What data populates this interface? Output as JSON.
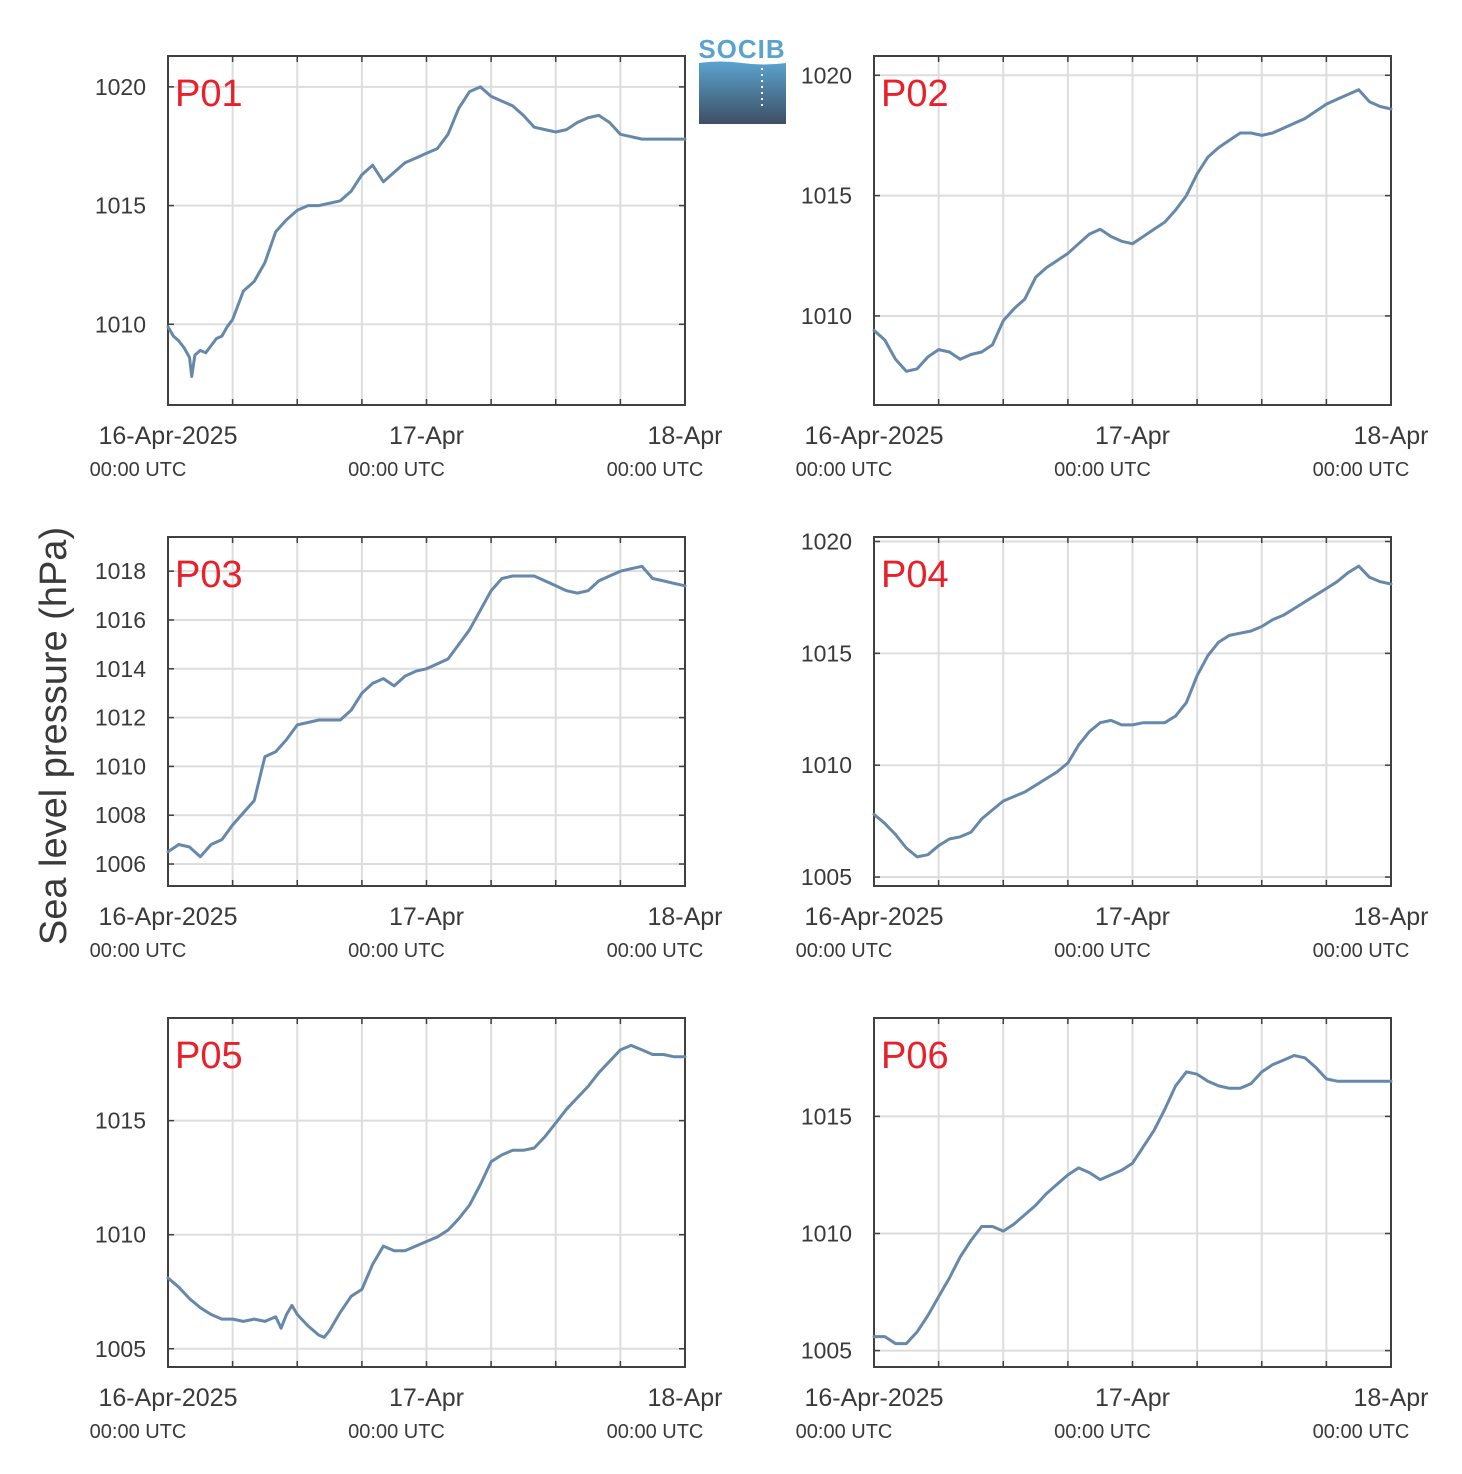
{
  "figure": {
    "ylabel": "Sea level pressure (hPa)",
    "logo_text": "SOCIB",
    "colors": {
      "line": "#6688aa",
      "panel_label": "#e8202a",
      "grid": "#dddddd",
      "axis": "#404040",
      "text": "#3a3a3a",
      "logo_top": "#5ba3cf",
      "logo_bottom": "#3d4f64"
    }
  },
  "chart_data": [
    {
      "type": "line",
      "title": "P01",
      "xlim": [
        0,
        48
      ],
      "x_ticks": [
        {
          "x": 0,
          "label": "16-Apr-2025",
          "sublabel": "00:00 UTC"
        },
        {
          "x": 24,
          "label": "17-Apr",
          "sublabel": "00:00 UTC"
        },
        {
          "x": 48,
          "label": "18-Apr",
          "sublabel": "00:00 UTC"
        }
      ],
      "x_grid": [
        0,
        6,
        12,
        18,
        24,
        30,
        36,
        42,
        48
      ],
      "ylim": [
        1006.6,
        1021.3
      ],
      "yticks": [
        1010,
        1015,
        1020
      ],
      "series": [
        {
          "x": [
            0,
            0.5,
            1,
            1.5,
            2,
            2.2,
            2.5,
            3,
            3.5,
            4,
            4.5,
            5,
            5.5,
            6,
            7,
            8,
            9,
            10,
            11,
            12,
            13,
            14,
            15,
            16,
            17,
            18,
            19,
            20,
            21,
            22,
            23,
            24,
            25,
            26,
            27,
            28,
            29,
            30,
            31,
            32,
            33,
            34,
            35,
            36,
            37,
            38,
            39,
            40,
            41,
            42,
            43,
            44,
            45,
            46,
            47,
            48
          ],
          "y": [
            1009.9,
            1009.5,
            1009.3,
            1009.0,
            1008.6,
            1007.8,
            1008.7,
            1008.9,
            1008.8,
            1009.1,
            1009.4,
            1009.5,
            1009.9,
            1010.2,
            1011.4,
            1011.8,
            1012.6,
            1013.9,
            1014.4,
            1014.8,
            1015.0,
            1015.0,
            1015.1,
            1015.2,
            1015.6,
            1016.3,
            1016.7,
            1016.0,
            1016.4,
            1016.8,
            1017.0,
            1017.2,
            1017.4,
            1018.0,
            1019.1,
            1019.8,
            1020.0,
            1019.6,
            1019.4,
            1019.2,
            1018.8,
            1018.3,
            1018.2,
            1018.1,
            1018.2,
            1018.5,
            1018.7,
            1018.8,
            1018.5,
            1018.0,
            1017.9,
            1017.8,
            1017.8,
            1017.8,
            1017.8,
            1017.8
          ]
        }
      ]
    },
    {
      "type": "line",
      "title": "P02",
      "xlim": [
        0,
        48
      ],
      "x_ticks": [
        {
          "x": 0,
          "label": "16-Apr-2025",
          "sublabel": "00:00 UTC"
        },
        {
          "x": 24,
          "label": "17-Apr",
          "sublabel": "00:00 UTC"
        },
        {
          "x": 48,
          "label": "18-Apr",
          "sublabel": "00:00 UTC"
        }
      ],
      "x_grid": [
        0,
        6,
        12,
        18,
        24,
        30,
        36,
        42,
        48
      ],
      "ylim": [
        1006.3,
        1020.8
      ],
      "yticks": [
        1010,
        1015,
        1020
      ],
      "series": [
        {
          "x": [
            0,
            1,
            2,
            3,
            4,
            5,
            6,
            7,
            8,
            9,
            10,
            11,
            12,
            13,
            14,
            15,
            16,
            17,
            18,
            19,
            20,
            21,
            22,
            23,
            24,
            25,
            26,
            27,
            28,
            29,
            30,
            31,
            32,
            33,
            34,
            35,
            36,
            37,
            38,
            39,
            40,
            41,
            42,
            43,
            44,
            45,
            46,
            47,
            48
          ],
          "y": [
            1009.4,
            1009.0,
            1008.2,
            1007.7,
            1007.8,
            1008.3,
            1008.6,
            1008.5,
            1008.2,
            1008.4,
            1008.5,
            1008.8,
            1009.8,
            1010.3,
            1010.7,
            1011.6,
            1012.0,
            1012.3,
            1012.6,
            1013.0,
            1013.4,
            1013.6,
            1013.3,
            1013.1,
            1013.0,
            1013.3,
            1013.6,
            1013.9,
            1014.4,
            1015.0,
            1015.9,
            1016.6,
            1017.0,
            1017.3,
            1017.6,
            1017.6,
            1017.5,
            1017.6,
            1017.8,
            1018.0,
            1018.2,
            1018.5,
            1018.8,
            1019.0,
            1019.2,
            1019.4,
            1018.9,
            1018.7,
            1018.6
          ]
        }
      ]
    },
    {
      "type": "line",
      "title": "P03",
      "xlim": [
        0,
        48
      ],
      "x_ticks": [
        {
          "x": 0,
          "label": "16-Apr-2025",
          "sublabel": "00:00 UTC"
        },
        {
          "x": 24,
          "label": "17-Apr",
          "sublabel": "00:00 UTC"
        },
        {
          "x": 48,
          "label": "18-Apr",
          "sublabel": "00:00 UTC"
        }
      ],
      "x_grid": [
        0,
        6,
        12,
        18,
        24,
        30,
        36,
        42,
        48
      ],
      "ylim": [
        1005.1,
        1019.4
      ],
      "yticks": [
        1006,
        1008,
        1010,
        1012,
        1014,
        1016,
        1018
      ],
      "series": [
        {
          "x": [
            0,
            1,
            2,
            3,
            4,
            5,
            6,
            7,
            8,
            9,
            10,
            11,
            12,
            13,
            14,
            15,
            16,
            17,
            18,
            19,
            20,
            21,
            22,
            23,
            24,
            25,
            26,
            27,
            28,
            29,
            30,
            31,
            32,
            33,
            34,
            35,
            36,
            37,
            38,
            39,
            40,
            41,
            42,
            43,
            44,
            45,
            46,
            47,
            48
          ],
          "y": [
            1006.5,
            1006.8,
            1006.7,
            1006.3,
            1006.8,
            1007.0,
            1007.6,
            1008.1,
            1008.6,
            1010.4,
            1010.6,
            1011.1,
            1011.7,
            1011.8,
            1011.9,
            1011.9,
            1011.9,
            1012.3,
            1013.0,
            1013.4,
            1013.6,
            1013.3,
            1013.7,
            1013.9,
            1014.0,
            1014.2,
            1014.4,
            1015.0,
            1015.6,
            1016.4,
            1017.2,
            1017.7,
            1017.8,
            1017.8,
            1017.8,
            1017.6,
            1017.4,
            1017.2,
            1017.1,
            1017.2,
            1017.6,
            1017.8,
            1018.0,
            1018.1,
            1018.2,
            1017.7,
            1017.6,
            1017.5,
            1017.4
          ]
        }
      ]
    },
    {
      "type": "line",
      "title": "P04",
      "xlim": [
        0,
        48
      ],
      "x_ticks": [
        {
          "x": 0,
          "label": "16-Apr-2025",
          "sublabel": "00:00 UTC"
        },
        {
          "x": 24,
          "label": "17-Apr",
          "sublabel": "00:00 UTC"
        },
        {
          "x": 48,
          "label": "18-Apr",
          "sublabel": "00:00 UTC"
        }
      ],
      "x_grid": [
        0,
        6,
        12,
        18,
        24,
        30,
        36,
        42,
        48
      ],
      "ylim": [
        1004.6,
        1020.2
      ],
      "yticks": [
        1005,
        1010,
        1015,
        1020
      ],
      "series": [
        {
          "x": [
            0,
            1,
            2,
            3,
            4,
            5,
            6,
            7,
            8,
            9,
            10,
            11,
            12,
            13,
            14,
            15,
            16,
            17,
            18,
            19,
            20,
            21,
            22,
            23,
            24,
            25,
            26,
            27,
            28,
            29,
            30,
            31,
            32,
            33,
            34,
            35,
            36,
            37,
            38,
            39,
            40,
            41,
            42,
            43,
            44,
            45,
            46,
            47,
            48
          ],
          "y": [
            1007.8,
            1007.4,
            1006.9,
            1006.3,
            1005.9,
            1006.0,
            1006.4,
            1006.7,
            1006.8,
            1007.0,
            1007.6,
            1008.0,
            1008.4,
            1008.6,
            1008.8,
            1009.1,
            1009.4,
            1009.7,
            1010.1,
            1010.9,
            1011.5,
            1011.9,
            1012.0,
            1011.8,
            1011.8,
            1011.9,
            1011.9,
            1011.9,
            1012.2,
            1012.8,
            1014.0,
            1014.9,
            1015.5,
            1015.8,
            1015.9,
            1016.0,
            1016.2,
            1016.5,
            1016.7,
            1017.0,
            1017.3,
            1017.6,
            1017.9,
            1018.2,
            1018.6,
            1018.9,
            1018.4,
            1018.2,
            1018.1
          ]
        }
      ]
    },
    {
      "type": "line",
      "title": "P05",
      "xlim": [
        0,
        48
      ],
      "x_ticks": [
        {
          "x": 0,
          "label": "16-Apr-2025",
          "sublabel": "00:00 UTC"
        },
        {
          "x": 24,
          "label": "17-Apr",
          "sublabel": "00:00 UTC"
        },
        {
          "x": 48,
          "label": "18-Apr",
          "sublabel": "00:00 UTC"
        }
      ],
      "x_grid": [
        0,
        6,
        12,
        18,
        24,
        30,
        36,
        42,
        48
      ],
      "ylim": [
        1004.2,
        1019.5
      ],
      "yticks": [
        1005,
        1010,
        1015
      ],
      "series": [
        {
          "x": [
            0,
            1,
            2,
            3,
            4,
            5,
            6,
            7,
            8,
            9,
            10,
            10.5,
            11,
            11.5,
            12,
            13,
            14,
            14.5,
            15,
            16,
            17,
            18,
            19,
            20,
            21,
            22,
            23,
            24,
            25,
            26,
            27,
            28,
            29,
            30,
            31,
            32,
            33,
            34,
            35,
            36,
            37,
            38,
            39,
            40,
            41,
            42,
            43,
            44,
            45,
            46,
            47,
            48
          ],
          "y": [
            1008.1,
            1007.7,
            1007.2,
            1006.8,
            1006.5,
            1006.3,
            1006.3,
            1006.2,
            1006.3,
            1006.2,
            1006.4,
            1005.9,
            1006.5,
            1006.9,
            1006.5,
            1006.0,
            1005.6,
            1005.5,
            1005.8,
            1006.6,
            1007.3,
            1007.6,
            1008.7,
            1009.5,
            1009.3,
            1009.3,
            1009.5,
            1009.7,
            1009.9,
            1010.2,
            1010.7,
            1011.3,
            1012.2,
            1013.2,
            1013.5,
            1013.7,
            1013.7,
            1013.8,
            1014.3,
            1014.9,
            1015.5,
            1016.0,
            1016.5,
            1017.1,
            1017.6,
            1018.1,
            1018.3,
            1018.1,
            1017.9,
            1017.9,
            1017.8,
            1017.8
          ]
        }
      ]
    },
    {
      "type": "line",
      "title": "P06",
      "xlim": [
        0,
        48
      ],
      "x_ticks": [
        {
          "x": 0,
          "label": "16-Apr-2025",
          "sublabel": "00:00 UTC"
        },
        {
          "x": 24,
          "label": "17-Apr",
          "sublabel": "00:00 UTC"
        },
        {
          "x": 48,
          "label": "18-Apr",
          "sublabel": "00:00 UTC"
        }
      ],
      "x_grid": [
        0,
        6,
        12,
        18,
        24,
        30,
        36,
        42,
        48
      ],
      "ylim": [
        1004.3,
        1019.2
      ],
      "yticks": [
        1005,
        1010,
        1015
      ],
      "series": [
        {
          "x": [
            0,
            1,
            2,
            3,
            4,
            5,
            6,
            7,
            8,
            9,
            10,
            11,
            12,
            13,
            14,
            15,
            16,
            17,
            18,
            19,
            20,
            21,
            22,
            23,
            24,
            25,
            26,
            27,
            28,
            29,
            30,
            31,
            32,
            33,
            34,
            35,
            36,
            37,
            38,
            39,
            40,
            41,
            42,
            43,
            44,
            45,
            46,
            47,
            48
          ],
          "y": [
            1005.6,
            1005.6,
            1005.3,
            1005.3,
            1005.8,
            1006.5,
            1007.3,
            1008.1,
            1009.0,
            1009.7,
            1010.3,
            1010.3,
            1010.1,
            1010.4,
            1010.8,
            1011.2,
            1011.7,
            1012.1,
            1012.5,
            1012.8,
            1012.6,
            1012.3,
            1012.5,
            1012.7,
            1013.0,
            1013.7,
            1014.4,
            1015.3,
            1016.3,
            1016.9,
            1016.8,
            1016.5,
            1016.3,
            1016.2,
            1016.2,
            1016.4,
            1016.9,
            1017.2,
            1017.4,
            1017.6,
            1017.5,
            1017.1,
            1016.6,
            1016.5,
            1016.5,
            1016.5,
            1016.5,
            1016.5,
            1016.5
          ]
        }
      ]
    }
  ]
}
